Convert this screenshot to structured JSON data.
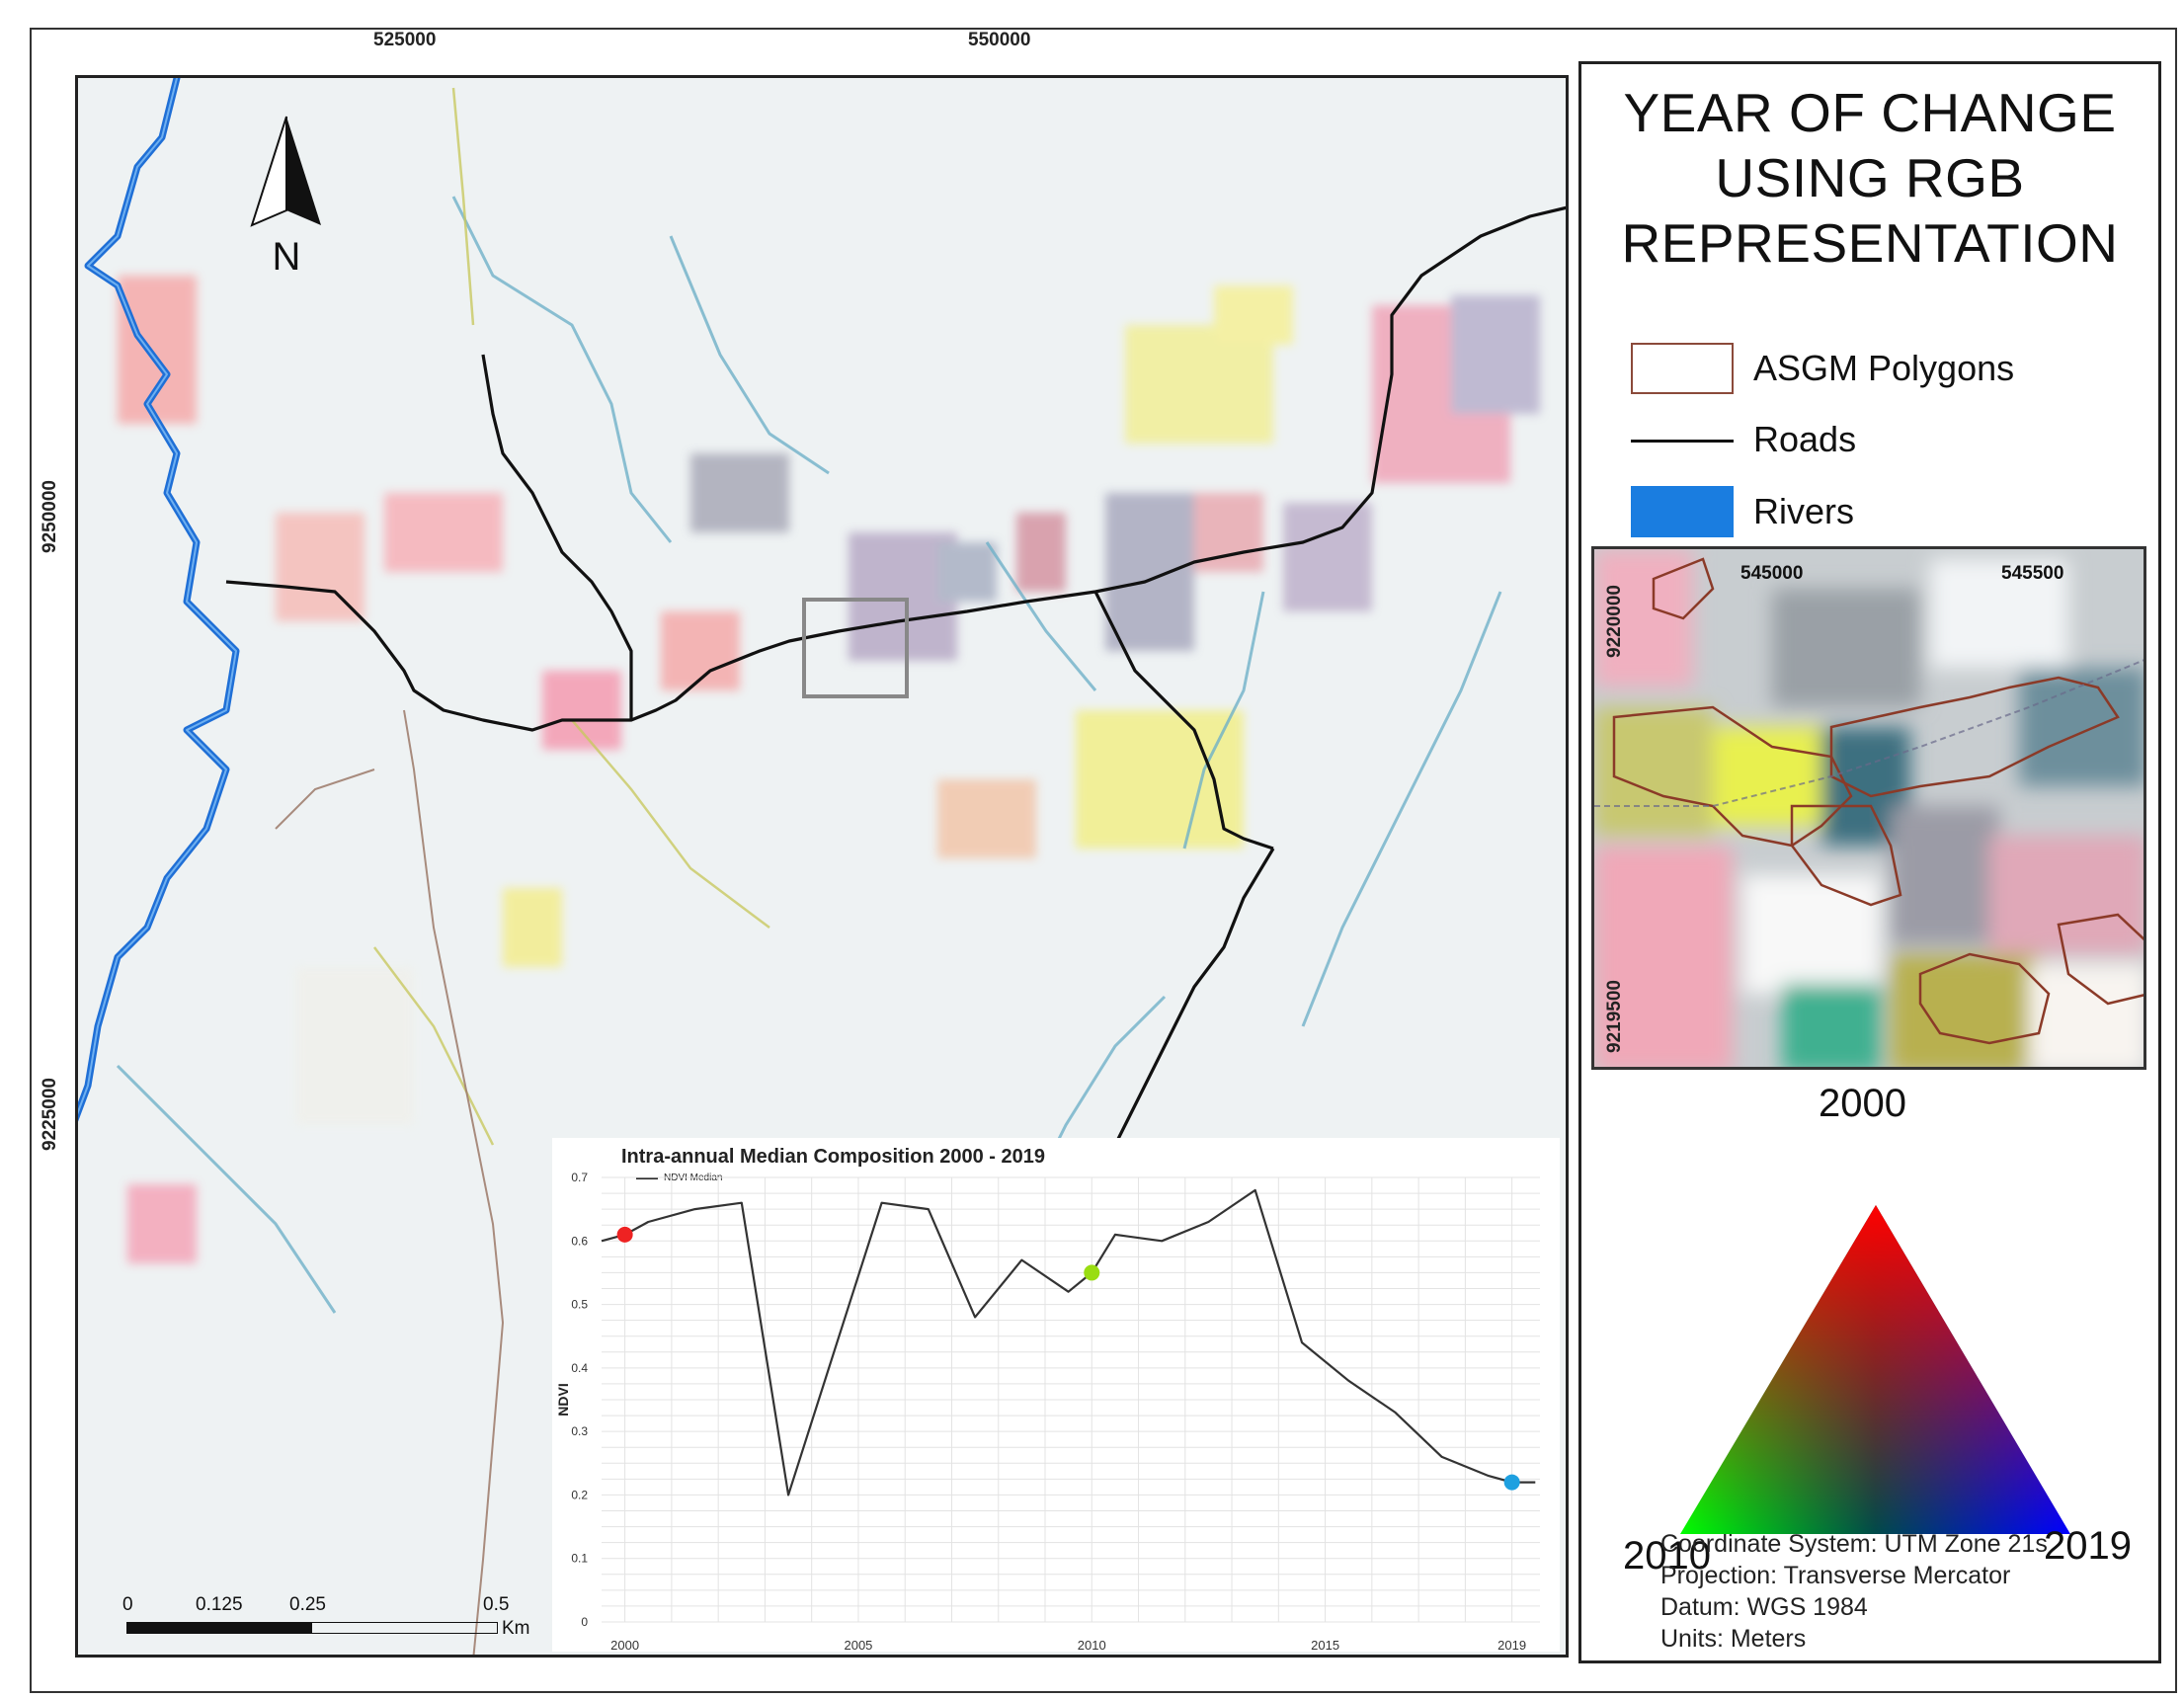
{
  "map": {
    "x_ticks": [
      "525000",
      "550000"
    ],
    "y_ticks": [
      "9250000",
      "9225000"
    ],
    "north_label": "N",
    "scale": {
      "labels": [
        "0",
        "0.125",
        "0.25",
        "0.5"
      ],
      "unit": "Km"
    }
  },
  "legend": {
    "title_lines": [
      "YEAR OF CHANGE",
      "USING RGB",
      "REPRESENTATION"
    ],
    "items": [
      {
        "label": "ASGM Polygons",
        "swatch_fill": "#ffffff",
        "swatch_border": "#8b4a3a"
      },
      {
        "label": "Roads",
        "swatch_color": "#111111"
      },
      {
        "label": "Rivers",
        "swatch_color": "#1a7de0"
      }
    ]
  },
  "inset": {
    "x_ticks": [
      "545000",
      "545500"
    ],
    "y_ticks": [
      "9220000",
      "9219500"
    ]
  },
  "color_triangle": {
    "top_label": "2000",
    "left_label": "2010",
    "right_label": "2019",
    "colors": {
      "top": "#ff0000",
      "left": "#00ff00",
      "right": "#0000ff"
    }
  },
  "metadata": [
    "Coordinate System: UTM Zone 21s",
    "Projection: Transverse Mercator",
    "Datum: WGS 1984",
    "Units: Meters"
  ],
  "chart_data": {
    "type": "line",
    "title": "Intra-annual Median Composition 2000 - 2019",
    "ylabel": "NDVI",
    "xlabel": "",
    "series": [
      {
        "name": "NDVI Median",
        "color": "#333333",
        "x": [
          1999.5,
          2000,
          2000.5,
          2001.5,
          2002.5,
          2003.5,
          2004.5,
          2005.5,
          2006.5,
          2007.5,
          2008.5,
          2009.5,
          2010,
          2010.5,
          2011.5,
          2012.5,
          2013.5,
          2014.5,
          2015.5,
          2016.5,
          2017.5,
          2018.5,
          2019,
          2019.5
        ],
        "y": [
          0.6,
          0.61,
          0.63,
          0.65,
          0.66,
          0.2,
          0.43,
          0.66,
          0.65,
          0.48,
          0.57,
          0.52,
          0.55,
          0.61,
          0.6,
          0.63,
          0.68,
          0.44,
          0.38,
          0.33,
          0.26,
          0.23,
          0.22,
          0.22
        ]
      }
    ],
    "highlights": [
      {
        "x": 2000,
        "y": 0.61,
        "color": "#ee2222"
      },
      {
        "x": 2010,
        "y": 0.55,
        "color": "#99dd11"
      },
      {
        "x": 2019,
        "y": 0.22,
        "color": "#1ea0e0"
      }
    ],
    "x_ticks": [
      2000,
      2005,
      2010,
      2015,
      2019
    ],
    "y_ticks": [
      0,
      0.1,
      0.2,
      0.3,
      0.4,
      0.5,
      0.6,
      0.7
    ],
    "xlim": [
      1999.5,
      2019.6
    ],
    "ylim": [
      0,
      0.7
    ],
    "grid": true,
    "legend_position": "top-left"
  }
}
